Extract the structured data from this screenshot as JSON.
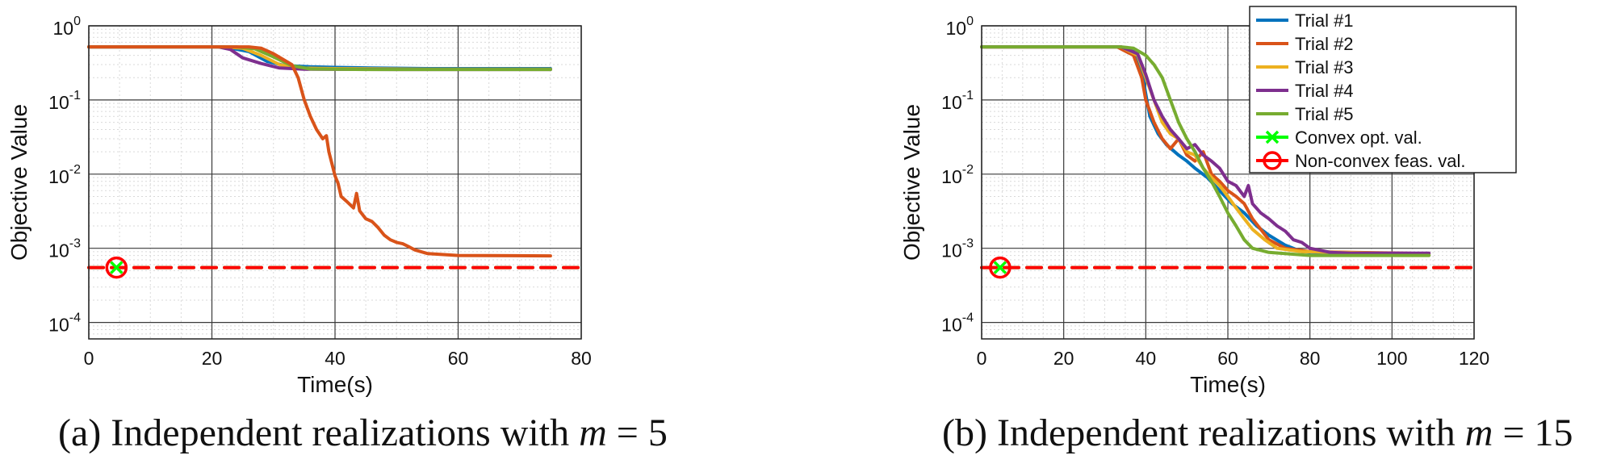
{
  "chart_data": [
    {
      "type": "line",
      "yscale": "log",
      "xlabel": "Time(s)",
      "ylabel": "Objective Value",
      "xlim": [
        0,
        80
      ],
      "ylim": [
        6e-05,
        1
      ],
      "xticks": [
        "0",
        "20",
        "40",
        "60",
        "80"
      ],
      "yticks": [
        {
          "base": "10",
          "exp": "0"
        },
        {
          "base": "10",
          "exp": "-1"
        },
        {
          "base": "10",
          "exp": "-2"
        },
        {
          "base": "10",
          "exp": "-3"
        },
        {
          "base": "10",
          "exp": "-4"
        }
      ],
      "caption": {
        "prefix": "(a) Independent realizations with ",
        "var": "m",
        "eq": " = ",
        "num": "5"
      },
      "series": [
        {
          "name": "Trial #1",
          "color": "#0072BD",
          "points": [
            [
              0,
              0.52
            ],
            [
              22,
              0.52
            ],
            [
              26,
              0.45
            ],
            [
              29,
              0.33
            ],
            [
              32,
              0.29
            ],
            [
              36,
              0.28
            ],
            [
              40,
              0.275
            ],
            [
              46,
              0.27
            ],
            [
              55,
              0.265
            ],
            [
              75,
              0.265
            ]
          ]
        },
        {
          "name": "Trial #3",
          "color": "#EDB120",
          "points": [
            [
              0,
              0.52
            ],
            [
              22,
              0.52
            ],
            [
              25,
              0.5
            ],
            [
              28,
              0.4
            ],
            [
              31,
              0.3
            ],
            [
              34,
              0.27
            ],
            [
              40,
              0.265
            ],
            [
              55,
              0.26
            ],
            [
              75,
              0.26
            ]
          ]
        },
        {
          "name": "Trial #4",
          "color": "#7E2F8E",
          "points": [
            [
              0,
              0.52
            ],
            [
              21,
              0.52
            ],
            [
              23,
              0.48
            ],
            [
              25,
              0.37
            ],
            [
              28,
              0.31
            ],
            [
              31,
              0.27
            ],
            [
              35,
              0.26
            ],
            [
              50,
              0.258
            ],
            [
              75,
              0.258
            ]
          ]
        },
        {
          "name": "Trial #5",
          "color": "#77AC30",
          "points": [
            [
              0,
              0.52
            ],
            [
              24,
              0.52
            ],
            [
              27,
              0.49
            ],
            [
              30,
              0.38
            ],
            [
              33,
              0.29
            ],
            [
              36,
              0.262
            ],
            [
              45,
              0.258
            ],
            [
              60,
              0.258
            ],
            [
              75,
              0.258
            ]
          ]
        },
        {
          "name": "Trial #2",
          "color": "#D95319",
          "points": [
            [
              0,
              0.52
            ],
            [
              26,
              0.52
            ],
            [
              28,
              0.5
            ],
            [
              30,
              0.42
            ],
            [
              33,
              0.3
            ],
            [
              34,
              0.2
            ],
            [
              35,
              0.1
            ],
            [
              36,
              0.06
            ],
            [
              37,
              0.04
            ],
            [
              38,
              0.03
            ],
            [
              38.6,
              0.033
            ],
            [
              39,
              0.02
            ],
            [
              40,
              0.0095
            ],
            [
              40.5,
              0.0075
            ],
            [
              41,
              0.005
            ],
            [
              42,
              0.0042
            ],
            [
              43,
              0.0035
            ],
            [
              43.5,
              0.0055
            ],
            [
              44,
              0.0032
            ],
            [
              45,
              0.0025
            ],
            [
              46,
              0.0023
            ],
            [
              47,
              0.0019
            ],
            [
              48,
              0.0015
            ],
            [
              49,
              0.0013
            ],
            [
              50,
              0.0012
            ],
            [
              51,
              0.00115
            ],
            [
              52,
              0.00105
            ],
            [
              53,
              0.00095
            ],
            [
              55,
              0.00085
            ],
            [
              60,
              0.0008
            ],
            [
              75,
              0.00079
            ]
          ]
        },
        {
          "name": "Convex opt. val.",
          "color": "#00FF00",
          "dash": true,
          "points": [
            [
              0,
              0.00055
            ],
            [
              80,
              0.00055
            ]
          ]
        },
        {
          "name": "Non-convex feas. val.",
          "color": "#FF0000",
          "dash": true,
          "points": [
            [
              0,
              0.00055
            ],
            [
              80,
              0.00055
            ]
          ]
        }
      ],
      "markers": [
        {
          "series": "Convex opt. val.",
          "symbol": "x",
          "x": 4.5,
          "y": 0.00055
        },
        {
          "series": "Non-convex feas. val.",
          "symbol": "o",
          "x": 4.5,
          "y": 0.00055
        }
      ]
    },
    {
      "type": "line",
      "yscale": "log",
      "xlabel": "Time(s)",
      "ylabel": "Objective Value",
      "xlim": [
        0,
        120
      ],
      "ylim": [
        6e-05,
        1
      ],
      "xticks": [
        "0",
        "20",
        "40",
        "60",
        "80",
        "100",
        "120"
      ],
      "yticks": [
        {
          "base": "10",
          "exp": "0"
        },
        {
          "base": "10",
          "exp": "-1"
        },
        {
          "base": "10",
          "exp": "-2"
        },
        {
          "base": "10",
          "exp": "-3"
        },
        {
          "base": "10",
          "exp": "-4"
        }
      ],
      "caption": {
        "prefix": "(b) Independent realizations with ",
        "var": "m",
        "eq": " = ",
        "num": "15"
      },
      "legend": {
        "position": "top-right",
        "entries": [
          "Trial #1",
          "Trial #2",
          "Trial #3",
          "Trial #4",
          "Trial #5",
          "Convex opt. val.",
          "Non-convex feas. val."
        ]
      },
      "series": [
        {
          "name": "Trial #1",
          "color": "#0072BD",
          "points": [
            [
              0,
              0.52
            ],
            [
              33,
              0.52
            ],
            [
              37,
              0.45
            ],
            [
              39,
              0.25
            ],
            [
              40,
              0.12
            ],
            [
              41,
              0.06
            ],
            [
              43,
              0.035
            ],
            [
              45,
              0.025
            ],
            [
              48,
              0.018
            ],
            [
              50,
              0.015
            ],
            [
              52,
              0.012
            ],
            [
              55,
              0.009
            ],
            [
              58,
              0.006
            ],
            [
              61,
              0.004
            ],
            [
              64,
              0.003
            ],
            [
              67,
              0.002
            ],
            [
              70,
              0.0015
            ],
            [
              74,
              0.0011
            ],
            [
              78,
              0.0009
            ],
            [
              85,
              0.00085
            ],
            [
              109,
              0.00083
            ]
          ]
        },
        {
          "name": "Trial #2",
          "color": "#D95319",
          "points": [
            [
              0,
              0.52
            ],
            [
              33,
              0.52
            ],
            [
              37,
              0.4
            ],
            [
              39,
              0.2
            ],
            [
              40,
              0.1
            ],
            [
              42,
              0.05
            ],
            [
              44,
              0.03
            ],
            [
              46,
              0.022
            ],
            [
              48,
              0.03
            ],
            [
              50,
              0.018
            ],
            [
              52,
              0.015
            ],
            [
              54,
              0.02
            ],
            [
              56,
              0.01
            ],
            [
              58,
              0.008
            ],
            [
              60,
              0.006
            ],
            [
              62,
              0.005
            ],
            [
              64,
              0.004
            ],
            [
              66,
              0.0025
            ],
            [
              68,
              0.0018
            ],
            [
              70,
              0.0013
            ],
            [
              74,
              0.001
            ],
            [
              80,
              0.0009
            ],
            [
              109,
              0.00085
            ]
          ]
        },
        {
          "name": "Trial #3",
          "color": "#EDB120",
          "points": [
            [
              0,
              0.52
            ],
            [
              34,
              0.52
            ],
            [
              38,
              0.4
            ],
            [
              40,
              0.2
            ],
            [
              42,
              0.1
            ],
            [
              44,
              0.05
            ],
            [
              46,
              0.035
            ],
            [
              48,
              0.03
            ],
            [
              50,
              0.02
            ],
            [
              52,
              0.018
            ],
            [
              54,
              0.012
            ],
            [
              56,
              0.009
            ],
            [
              58,
              0.007
            ],
            [
              60,
              0.005
            ],
            [
              62,
              0.0035
            ],
            [
              64,
              0.0025
            ],
            [
              66,
              0.0018
            ],
            [
              69,
              0.0013
            ],
            [
              72,
              0.001
            ],
            [
              78,
              0.0009
            ],
            [
              109,
              0.00084
            ]
          ]
        },
        {
          "name": "Trial #4",
          "color": "#7E2F8E",
          "points": [
            [
              0,
              0.52
            ],
            [
              34,
              0.52
            ],
            [
              38,
              0.42
            ],
            [
              40,
              0.22
            ],
            [
              42,
              0.1
            ],
            [
              44,
              0.06
            ],
            [
              46,
              0.04
            ],
            [
              48,
              0.03
            ],
            [
              50,
              0.022
            ],
            [
              52,
              0.025
            ],
            [
              54,
              0.018
            ],
            [
              56,
              0.015
            ],
            [
              58,
              0.012
            ],
            [
              60,
              0.008
            ],
            [
              62,
              0.007
            ],
            [
              64,
              0.005
            ],
            [
              65,
              0.007
            ],
            [
              66,
              0.004
            ],
            [
              68,
              0.003
            ],
            [
              70,
              0.0025
            ],
            [
              72,
              0.002
            ],
            [
              74,
              0.0017
            ],
            [
              76,
              0.0013
            ],
            [
              78,
              0.0012
            ],
            [
              80,
              0.001
            ],
            [
              85,
              0.00088
            ],
            [
              90,
              0.00086
            ],
            [
              109,
              0.00086
            ]
          ]
        },
        {
          "name": "Trial #5",
          "color": "#77AC30",
          "points": [
            [
              0,
              0.52
            ],
            [
              34,
              0.52
            ],
            [
              37,
              0.5
            ],
            [
              40,
              0.4
            ],
            [
              42,
              0.3
            ],
            [
              44,
              0.2
            ],
            [
              46,
              0.1
            ],
            [
              48,
              0.05
            ],
            [
              50,
              0.03
            ],
            [
              52,
              0.02
            ],
            [
              54,
              0.012
            ],
            [
              56,
              0.008
            ],
            [
              58,
              0.005
            ],
            [
              60,
              0.003
            ],
            [
              62,
              0.002
            ],
            [
              64,
              0.0013
            ],
            [
              66,
              0.001
            ],
            [
              70,
              0.00088
            ],
            [
              80,
              0.0008
            ],
            [
              109,
              0.0008
            ]
          ]
        },
        {
          "name": "Convex opt. val.",
          "color": "#00FF00",
          "dash": true,
          "points": [
            [
              0,
              0.00055
            ],
            [
              120,
              0.00055
            ]
          ]
        },
        {
          "name": "Non-convex feas. val.",
          "color": "#FF0000",
          "dash": true,
          "points": [
            [
              0,
              0.00055
            ],
            [
              120,
              0.00055
            ]
          ]
        }
      ],
      "markers": [
        {
          "series": "Convex opt. val.",
          "symbol": "x",
          "x": 4.5,
          "y": 0.00055
        },
        {
          "series": "Non-convex feas. val.",
          "symbol": "o",
          "x": 4.5,
          "y": 0.00055
        }
      ]
    }
  ]
}
